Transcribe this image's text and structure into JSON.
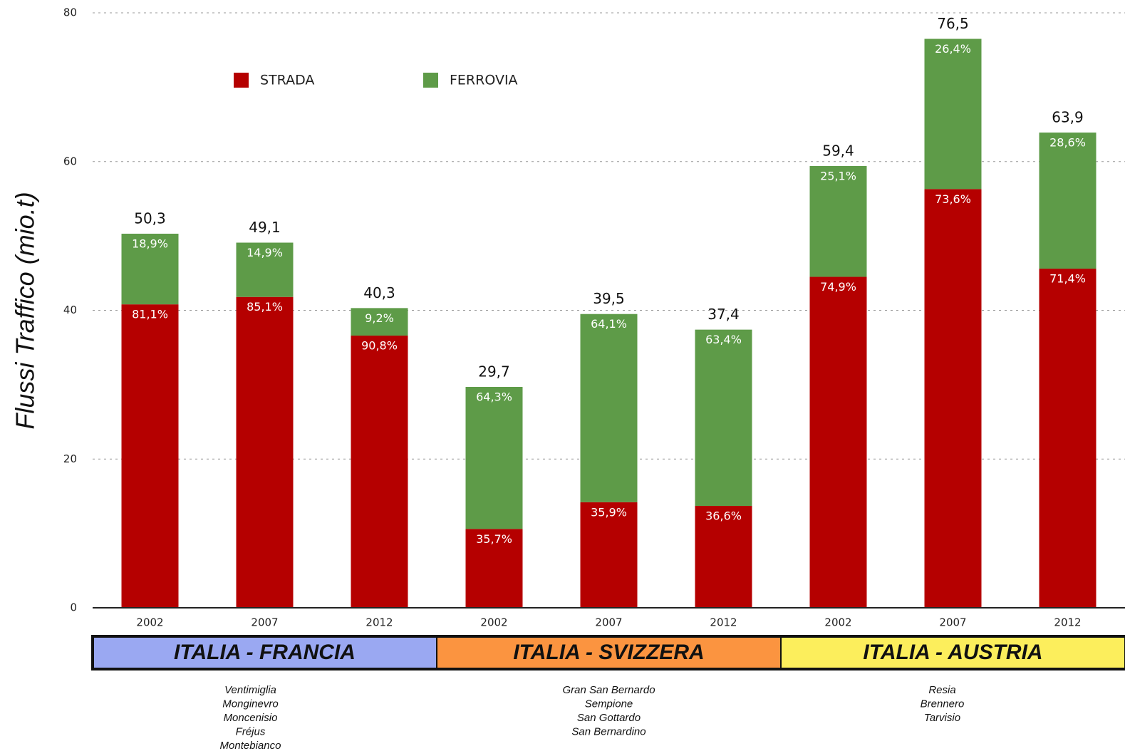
{
  "chart_data": {
    "type": "stacked_bar",
    "y_label": "Flussi Traffico (mio.t)",
    "categories": [
      "2002",
      "2007",
      "2012",
      "2002",
      "2007",
      "2012",
      "2002",
      "2007",
      "2012"
    ],
    "series": [
      {
        "name": "STRADA",
        "color": "#b50000",
        "values": [
          40.8,
          41.8,
          36.6,
          10.6,
          14.2,
          13.7,
          44.5,
          56.3,
          45.6
        ],
        "share_labels": [
          "81,1%",
          "85,1%",
          "90,8%",
          "35,7%",
          "35,9%",
          "36,6%",
          "74,9%",
          "73,6%",
          "71,4%"
        ]
      },
      {
        "name": "FERROVIA",
        "color": "#5e9b48",
        "values": [
          9.5,
          7.3,
          3.7,
          19.1,
          25.3,
          23.7,
          14.9,
          20.2,
          18.3
        ],
        "share_labels": [
          "18,9%",
          "14,9%",
          "9,2%",
          "64,3%",
          "64,1%",
          "63,4%",
          "25,1%",
          "26,4%",
          "28,6%"
        ]
      }
    ],
    "totals": {
      "values": [
        50.3,
        49.1,
        40.3,
        29.7,
        39.5,
        37.4,
        59.4,
        76.5,
        63.9
      ],
      "value_labels": [
        "50,3",
        "49,1",
        "40,3",
        "29,7",
        "39,5",
        "37,4",
        "59,4",
        "76,5",
        "63,9"
      ]
    },
    "groups": [
      {
        "name": "ITALIA - FRANCIA",
        "color": "#9aa8f2",
        "crossings": [
          "Ventimiglia",
          "Monginevro",
          "Moncenisio",
          "Fréjus",
          "Montebianco"
        ]
      },
      {
        "name": "ITALIA - SVIZZERA",
        "color": "#fb9440",
        "crossings": [
          "Gran San Bernardo",
          "Sempione",
          "San Gottardo",
          "San Bernardino"
        ]
      },
      {
        "name": "ITALIA - AUSTRIA",
        "color": "#fcee5c",
        "crossings": [
          "Resia",
          "Brennero",
          "Tarvisio"
        ]
      }
    ],
    "ylim": [
      0,
      80
    ],
    "yticks": [
      0,
      20,
      40,
      60,
      80
    ],
    "grid": true
  }
}
